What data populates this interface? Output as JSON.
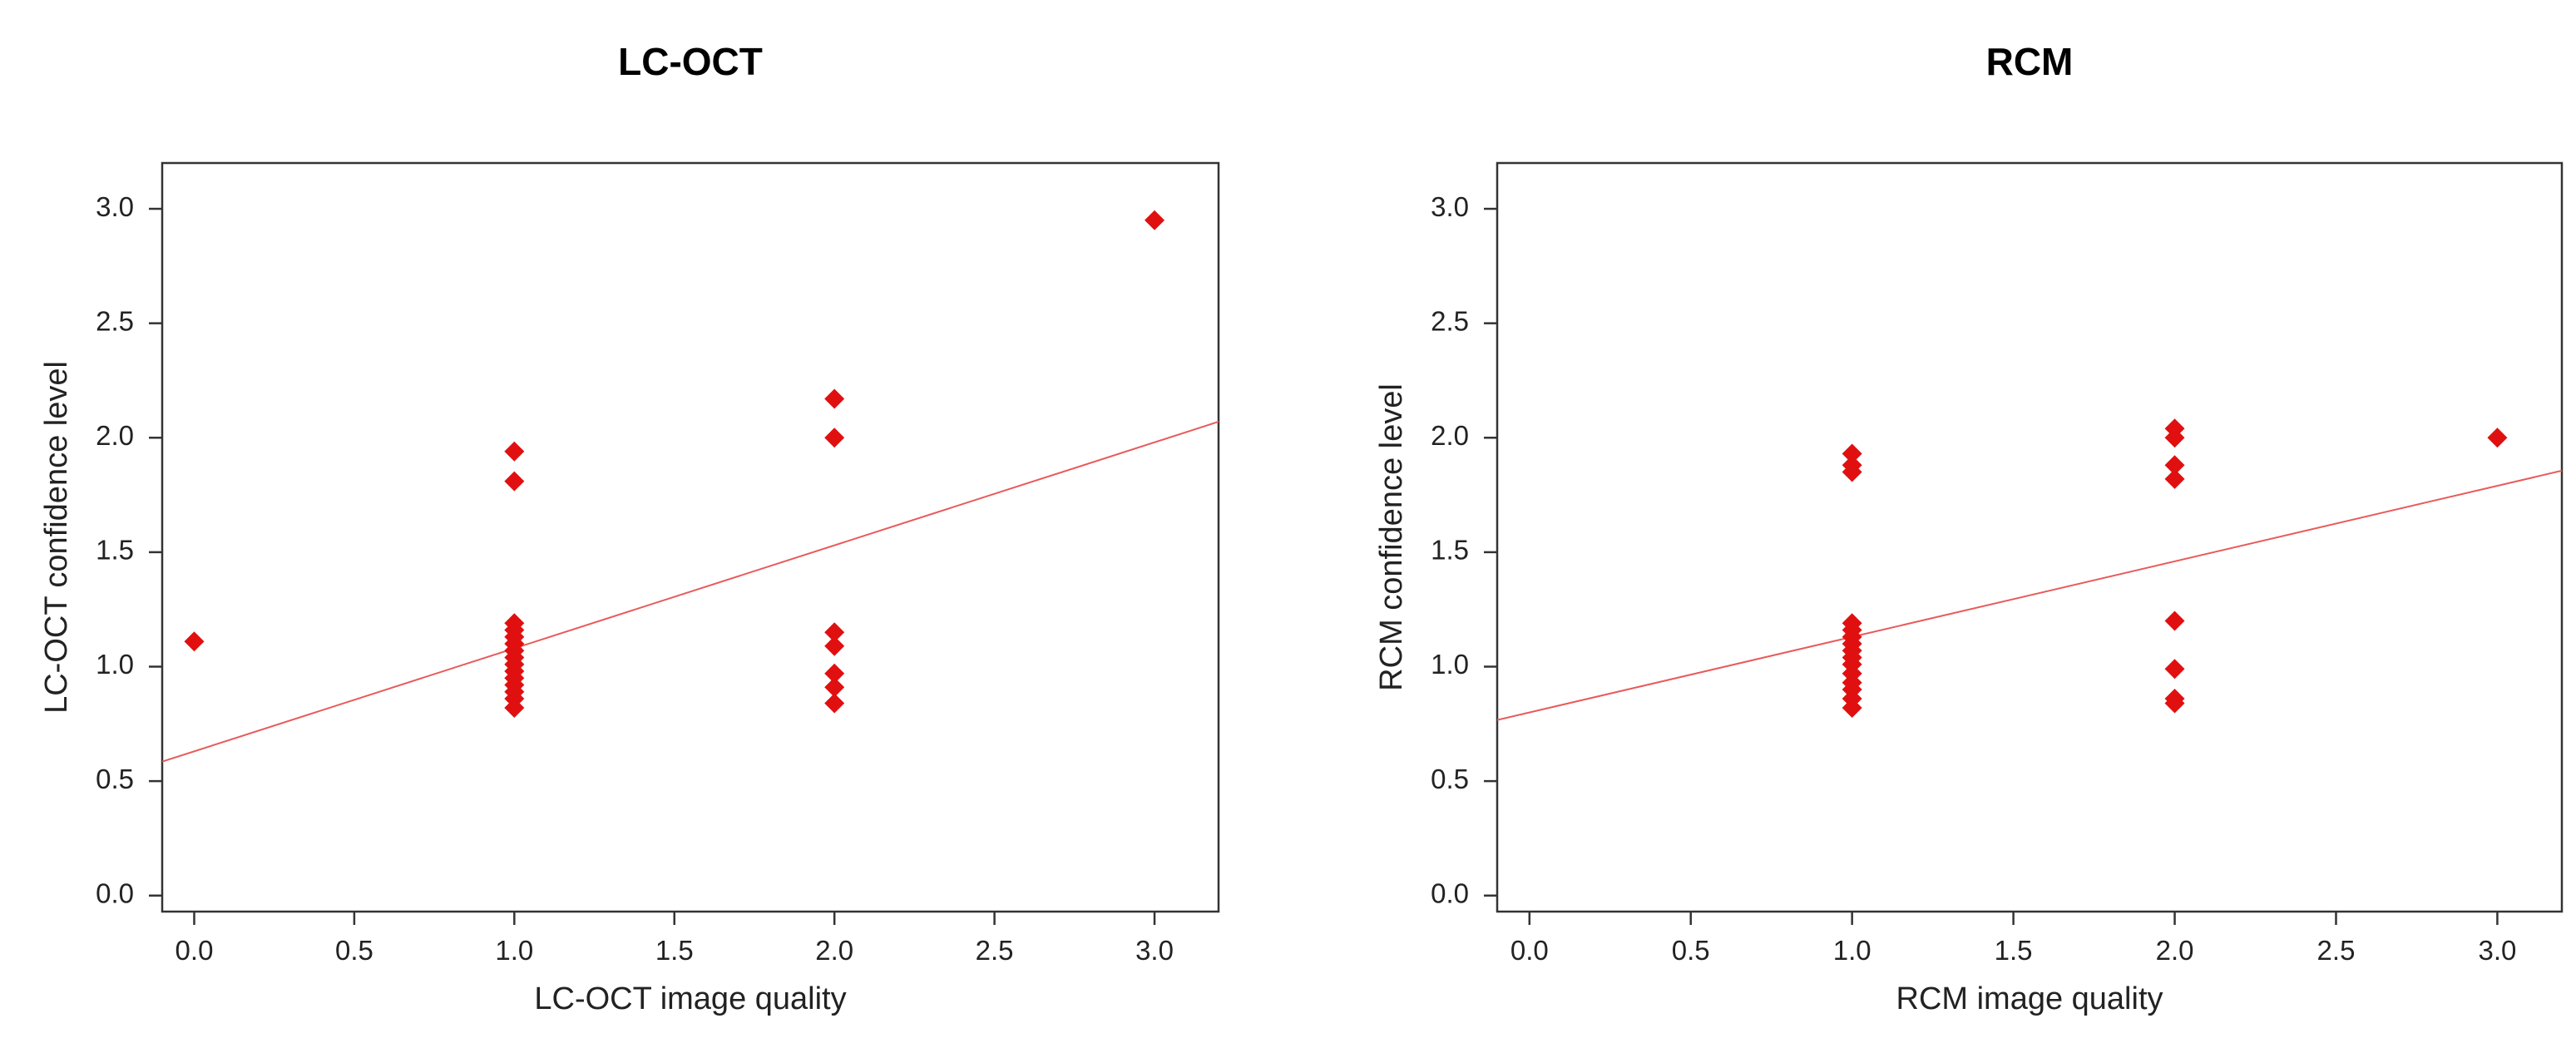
{
  "chart_data": [
    {
      "type": "scatter",
      "title": "LC-OCT",
      "xlabel": "LC-OCT image quality",
      "ylabel": "LC-OCT confidence level",
      "xlim": [
        -0.1,
        3.2
      ],
      "ylim": [
        -0.07,
        3.2
      ],
      "xticks": [
        "0.0",
        "0.5",
        "1.0",
        "1.5",
        "2.0",
        "2.5",
        "3.0"
      ],
      "yticks": [
        "0.0",
        "0.5",
        "1.0",
        "1.5",
        "2.0",
        "2.5",
        "3.0"
      ],
      "grid": false,
      "color": "#e01010",
      "marker": "diamond",
      "points": [
        {
          "x": 0,
          "y": 1.11
        },
        {
          "x": 1,
          "y": 1.94
        },
        {
          "x": 1,
          "y": 1.81
        },
        {
          "x": 1,
          "y": 1.19
        },
        {
          "x": 1,
          "y": 1.16
        },
        {
          "x": 1,
          "y": 1.13
        },
        {
          "x": 1,
          "y": 1.1
        },
        {
          "x": 1,
          "y": 1.07
        },
        {
          "x": 1,
          "y": 1.04
        },
        {
          "x": 1,
          "y": 1.01
        },
        {
          "x": 1,
          "y": 0.98
        },
        {
          "x": 1,
          "y": 0.95
        },
        {
          "x": 1,
          "y": 0.92
        },
        {
          "x": 1,
          "y": 0.89
        },
        {
          "x": 1,
          "y": 0.86
        },
        {
          "x": 1,
          "y": 0.82
        },
        {
          "x": 2,
          "y": 2.17
        },
        {
          "x": 2,
          "y": 2.0
        },
        {
          "x": 2,
          "y": 1.15
        },
        {
          "x": 2,
          "y": 1.09
        },
        {
          "x": 2,
          "y": 0.97
        },
        {
          "x": 2,
          "y": 0.91
        },
        {
          "x": 2,
          "y": 0.84
        },
        {
          "x": 3,
          "y": 2.95
        }
      ],
      "regression": {
        "slope": 0.45,
        "intercept": 0.63
      }
    },
    {
      "type": "scatter",
      "title": "RCM",
      "xlabel": "RCM image quality",
      "ylabel": "RCM confidence level",
      "xlim": [
        -0.1,
        3.2
      ],
      "ylim": [
        -0.07,
        3.2
      ],
      "xticks": [
        "0.0",
        "0.5",
        "1.0",
        "1.5",
        "2.0",
        "2.5",
        "3.0"
      ],
      "yticks": [
        "0.0",
        "0.5",
        "1.0",
        "1.5",
        "2.0",
        "2.5",
        "3.0"
      ],
      "grid": false,
      "color": "#e01010",
      "marker": "diamond",
      "points": [
        {
          "x": 1,
          "y": 1.93
        },
        {
          "x": 1,
          "y": 1.88
        },
        {
          "x": 1,
          "y": 1.85
        },
        {
          "x": 1,
          "y": 1.19
        },
        {
          "x": 1,
          "y": 1.16
        },
        {
          "x": 1,
          "y": 1.13
        },
        {
          "x": 1,
          "y": 1.1
        },
        {
          "x": 1,
          "y": 1.07
        },
        {
          "x": 1,
          "y": 1.04
        },
        {
          "x": 1,
          "y": 1.01
        },
        {
          "x": 1,
          "y": 0.97
        },
        {
          "x": 1,
          "y": 0.93
        },
        {
          "x": 1,
          "y": 0.9
        },
        {
          "x": 1,
          "y": 0.86
        },
        {
          "x": 1,
          "y": 0.82
        },
        {
          "x": 2,
          "y": 2.04
        },
        {
          "x": 2,
          "y": 2.0
        },
        {
          "x": 2,
          "y": 1.88
        },
        {
          "x": 2,
          "y": 1.82
        },
        {
          "x": 2,
          "y": 1.2
        },
        {
          "x": 2,
          "y": 0.99
        },
        {
          "x": 2,
          "y": 0.86
        },
        {
          "x": 2,
          "y": 0.84
        },
        {
          "x": 3,
          "y": 2.0
        }
      ],
      "regression": {
        "slope": 0.33,
        "intercept": 0.8
      }
    }
  ]
}
